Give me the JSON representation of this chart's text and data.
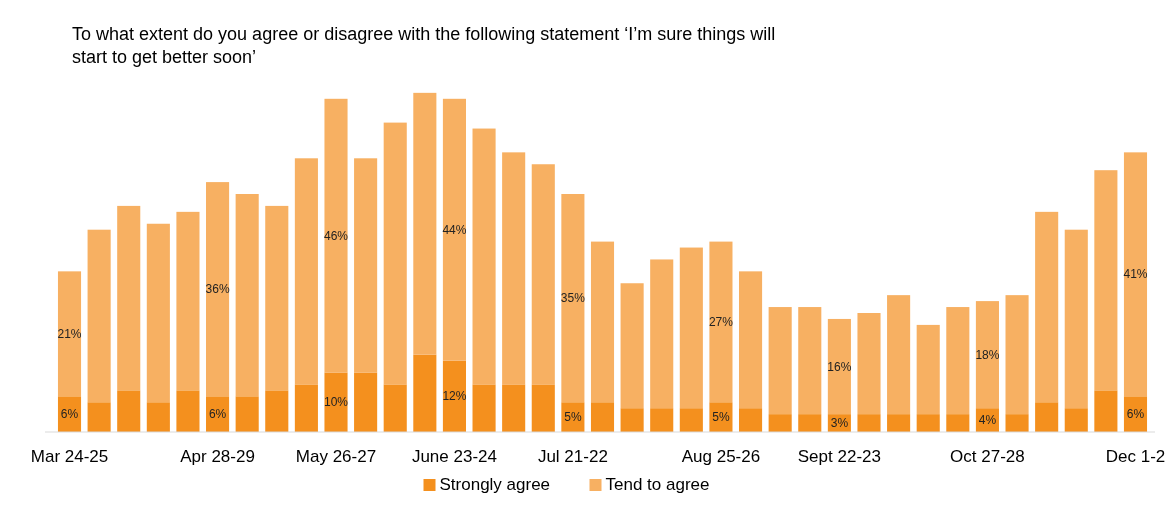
{
  "chart_data": {
    "type": "bar",
    "stacked": true,
    "title": "To what extent do you agree or disagree with the following statement ‘I’m sure things will start to get better soon’",
    "categories": [
      "Mar 24-25",
      null,
      null,
      null,
      null,
      "Apr 28-29",
      null,
      null,
      null,
      "May 26-27",
      null,
      null,
      null,
      "June 23-24",
      null,
      null,
      null,
      "Jul 21-22",
      null,
      null,
      null,
      null,
      "Aug 25-26",
      null,
      null,
      null,
      "Sept 22-23",
      null,
      null,
      null,
      null,
      "Oct 27-28",
      null,
      null,
      null,
      null,
      "Dec 1-2"
    ],
    "series": [
      {
        "name": "Strongly agree",
        "color": "#f4901e",
        "values": [
          6,
          5,
          7,
          5,
          7,
          6,
          6,
          7,
          8,
          10,
          10,
          8,
          13,
          12,
          8,
          8,
          8,
          5,
          5,
          4,
          4,
          4,
          5,
          4,
          3,
          3,
          3,
          3,
          3,
          3,
          3,
          4,
          3,
          5,
          4,
          7,
          6
        ],
        "value_labels": [
          "6%",
          null,
          null,
          null,
          null,
          "6%",
          null,
          null,
          null,
          "10%",
          null,
          null,
          null,
          "12%",
          null,
          null,
          null,
          "5%",
          null,
          null,
          null,
          null,
          "5%",
          null,
          null,
          null,
          "3%",
          null,
          null,
          null,
          null,
          "4%",
          null,
          null,
          null,
          null,
          "6%"
        ]
      },
      {
        "name": "Tend to agree",
        "color": "#f7b062",
        "values": [
          21,
          29,
          31,
          30,
          30,
          36,
          34,
          31,
          38,
          46,
          36,
          44,
          44,
          44,
          43,
          39,
          37,
          35,
          27,
          21,
          25,
          27,
          27,
          23,
          18,
          18,
          16,
          17,
          20,
          15,
          18,
          18,
          20,
          32,
          30,
          37,
          41
        ],
        "value_labels": [
          "21%",
          null,
          null,
          null,
          null,
          "36%",
          null,
          null,
          null,
          "46%",
          null,
          null,
          null,
          "44%",
          null,
          null,
          null,
          "35%",
          null,
          null,
          null,
          null,
          "27%",
          null,
          null,
          null,
          "16%",
          null,
          null,
          null,
          null,
          "18%",
          null,
          null,
          null,
          null,
          "41%"
        ]
      }
    ],
    "legend": "bottom"
  }
}
